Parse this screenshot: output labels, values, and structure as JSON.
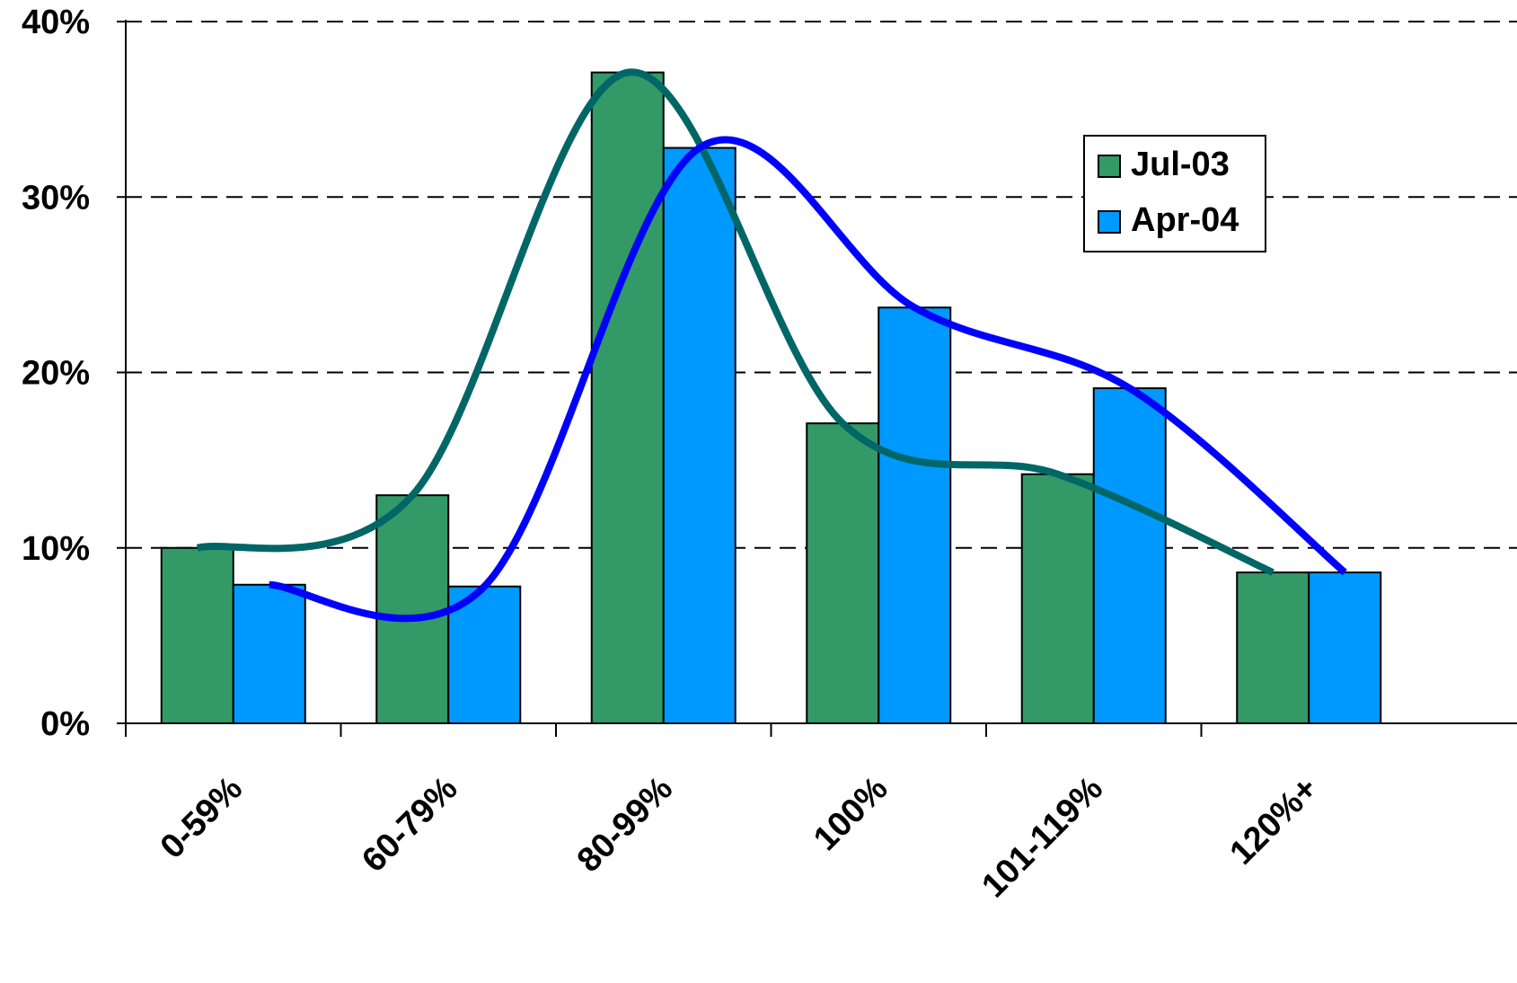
{
  "chart_data": {
    "type": "bar",
    "title": "",
    "xlabel": "",
    "ylabel": "",
    "categories": [
      "0-59%",
      "60-79%",
      "80-99%",
      "100%",
      "101-119%",
      "120%+"
    ],
    "series": [
      {
        "name": "Jul-03",
        "color": "#339966",
        "trend_color": "#006666",
        "values": [
          10.0,
          13.0,
          37.1,
          17.1,
          14.2,
          8.6
        ]
      },
      {
        "name": "Apr-04",
        "color": "#0099ff",
        "trend_color": "#0000ff",
        "values": [
          7.9,
          7.8,
          32.8,
          23.7,
          19.1,
          8.6
        ]
      }
    ],
    "ylim": [
      0,
      40
    ],
    "yticks": [
      0,
      10,
      20,
      30,
      40
    ],
    "ytick_labels": [
      "0%",
      "10%",
      "20%",
      "30%",
      "40%"
    ],
    "grid": true,
    "grid_style": "dashed",
    "legend": "top-right",
    "trendlines": "smoothed curve per series"
  }
}
